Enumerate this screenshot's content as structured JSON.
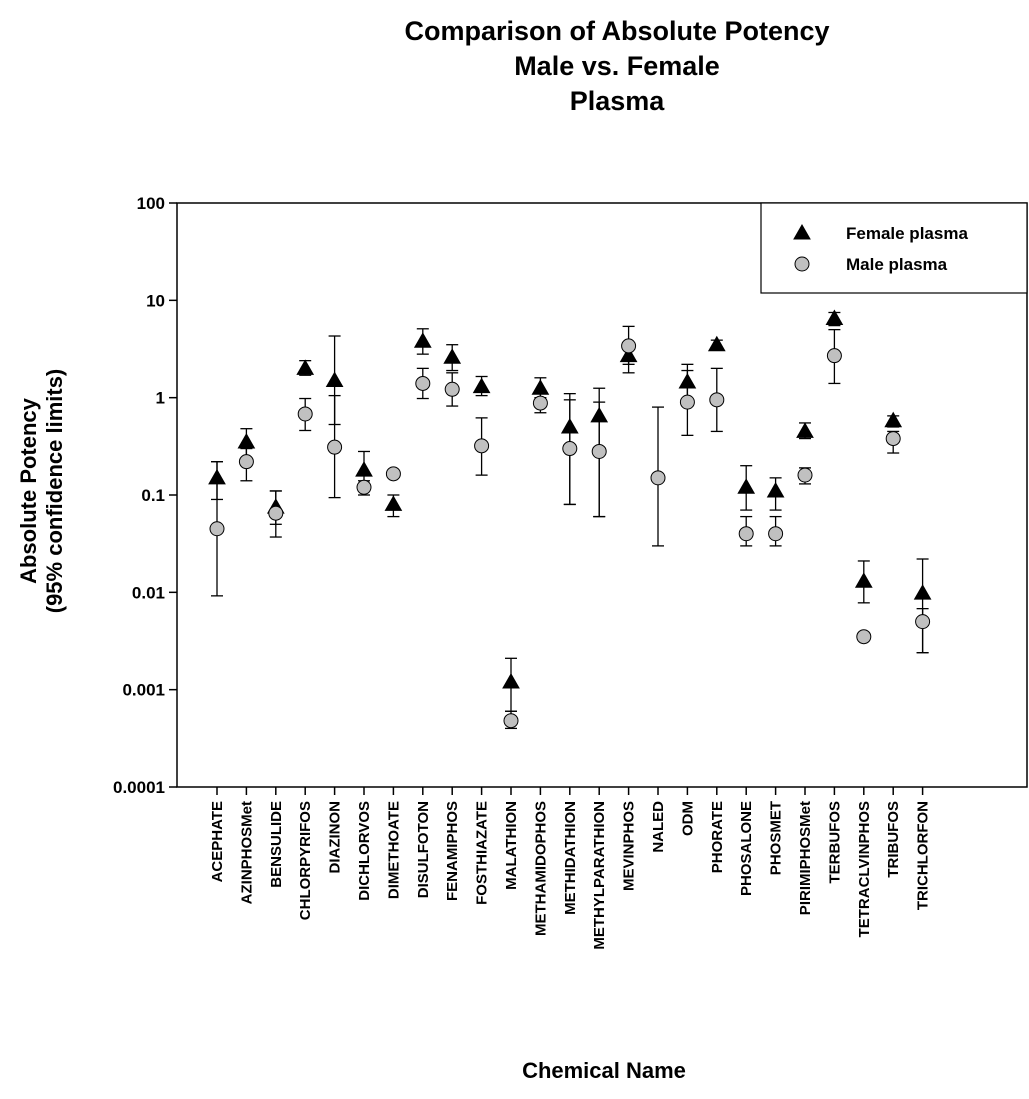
{
  "chart_data": {
    "type": "scatter",
    "title_lines": [
      "Comparison of Absolute Potency",
      "Male vs. Female",
      "Plasma"
    ],
    "xlabel": "Chemical Name",
    "ylabel_lines": [
      "Absolute Potency",
      "(95% confidence limits)"
    ],
    "yscale": "log",
    "ylim": [
      0.0001,
      100
    ],
    "yticks": [
      {
        "value": 100,
        "label": "100"
      },
      {
        "value": 10,
        "label": "10"
      },
      {
        "value": 1,
        "label": "1"
      },
      {
        "value": 0.1,
        "label": "0.1"
      },
      {
        "value": 0.01,
        "label": "0.01"
      },
      {
        "value": 0.001,
        "label": "0.001"
      },
      {
        "value": 0.0001,
        "label": "0.0001"
      }
    ],
    "grid": false,
    "legend_position": "top-right",
    "categories": [
      "ACEPHATE",
      "AZINPHOSMet",
      "BENSULIDE",
      "CHLORPYRIFOS",
      "DIAZINON",
      "DICHLORVOS",
      "DIMETHOATE",
      "DISULFOTON",
      "FENAMIPHOS",
      "FOSTHIAZATE",
      "MALATHION",
      "METHAMIDOPHOS",
      "METHIDATHION",
      "METHYLPARATHION",
      "MEVINPHOS",
      "NALED",
      "ODM",
      "PHORATE",
      "PHOSALONE",
      "PHOSMET",
      "PIRIMIPHOSMet",
      "TERBUFOS",
      "TETRACLVINPHOS",
      "TRIBUFOS",
      "TRICHLORFON"
    ],
    "series": [
      {
        "name": "Female plasma",
        "marker": "triangle",
        "color": "#000000",
        "values": [
          0.15,
          0.35,
          0.075,
          2.0,
          1.5,
          0.18,
          0.08,
          3.8,
          2.6,
          1.3,
          0.0012,
          1.25,
          0.5,
          0.65,
          2.7,
          null,
          1.45,
          3.5,
          0.12,
          0.11,
          0.45,
          6.5,
          0.013,
          0.58,
          0.0098
        ],
        "lower": [
          0.09,
          0.22,
          0.05,
          1.7,
          0.53,
          0.12,
          0.06,
          2.8,
          1.9,
          1.05,
          0.0006,
          1.0,
          0.08,
          0.06,
          2.2,
          null,
          0.95,
          3.1,
          0.07,
          0.07,
          0.38,
          5.5,
          0.0078,
          0.5,
          0.0024
        ],
        "upper": [
          0.22,
          0.48,
          0.11,
          2.4,
          4.3,
          0.28,
          0.1,
          5.1,
          3.5,
          1.65,
          0.0021,
          1.6,
          1.1,
          1.25,
          3.3,
          null,
          2.2,
          3.9,
          0.2,
          0.15,
          0.55,
          7.5,
          0.021,
          0.65,
          0.022
        ]
      },
      {
        "name": "Male plasma",
        "marker": "circle",
        "color": "#c0c0c0",
        "values": [
          0.045,
          0.22,
          0.065,
          0.68,
          0.31,
          0.12,
          0.165,
          1.4,
          1.22,
          0.32,
          0.00048,
          0.88,
          0.3,
          0.28,
          3.4,
          0.15,
          0.9,
          0.95,
          0.04,
          0.04,
          0.16,
          2.7,
          0.0035,
          0.38,
          0.005
        ],
        "lower": [
          0.0092,
          0.14,
          0.037,
          0.46,
          0.094,
          0.1,
          null,
          0.98,
          0.82,
          0.16,
          0.0004,
          0.7,
          0.08,
          0.06,
          1.8,
          0.03,
          0.41,
          0.45,
          0.03,
          0.03,
          0.13,
          1.4,
          null,
          0.27,
          0.0024
        ],
        "upper": [
          0.22,
          0.3,
          0.11,
          0.98,
          1.05,
          0.14,
          null,
          2.0,
          1.8,
          0.62,
          0.0006,
          1.1,
          0.95,
          0.9,
          5.4,
          0.8,
          1.9,
          2.0,
          0.06,
          0.06,
          0.19,
          5.0,
          null,
          0.45,
          0.0068
        ]
      }
    ]
  }
}
